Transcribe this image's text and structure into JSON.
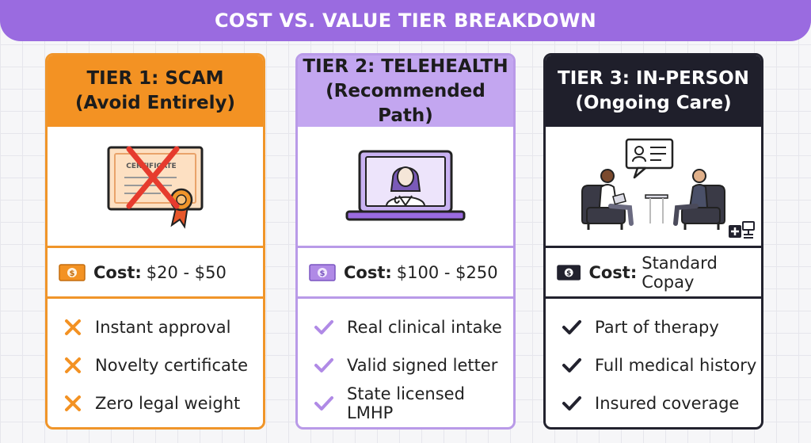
{
  "title": "COST VS. VALUE TIER BREAKDOWN",
  "colors": {
    "banner": "#9a6be0",
    "tier1": "#f39223",
    "tier2": "#c3a6f0",
    "tier3": "#1f1f2b"
  },
  "tiers": [
    {
      "title": "TIER 1: SCAM",
      "subtitle": "(Avoid Entirely)",
      "illustration": "crossed-out-certificate",
      "certificate_text": "CERTIFICATE",
      "cost_label": "Cost:",
      "cost_value": "$20 - $50",
      "feature_icon": "cross-icon",
      "features": [
        "Instant approval",
        "Novelty certificate",
        "Zero legal weight"
      ]
    },
    {
      "title": "TIER 2: TELEHEALTH",
      "subtitle": "(Recommended Path)",
      "illustration": "doctor-on-laptop",
      "cost_label": "Cost:",
      "cost_value": "$100 - $250",
      "feature_icon": "check-icon",
      "features": [
        "Real clinical intake",
        "Valid signed letter",
        "State licensed LMHP"
      ]
    },
    {
      "title": "TIER 3: IN-PERSON",
      "subtitle": "(Ongoing Care)",
      "illustration": "therapy-session",
      "cost_label": "Cost:",
      "cost_value": "Standard Copay",
      "feature_icon": "check-icon",
      "features": [
        "Part of therapy",
        "Full medical history",
        "Insured coverage"
      ]
    }
  ]
}
